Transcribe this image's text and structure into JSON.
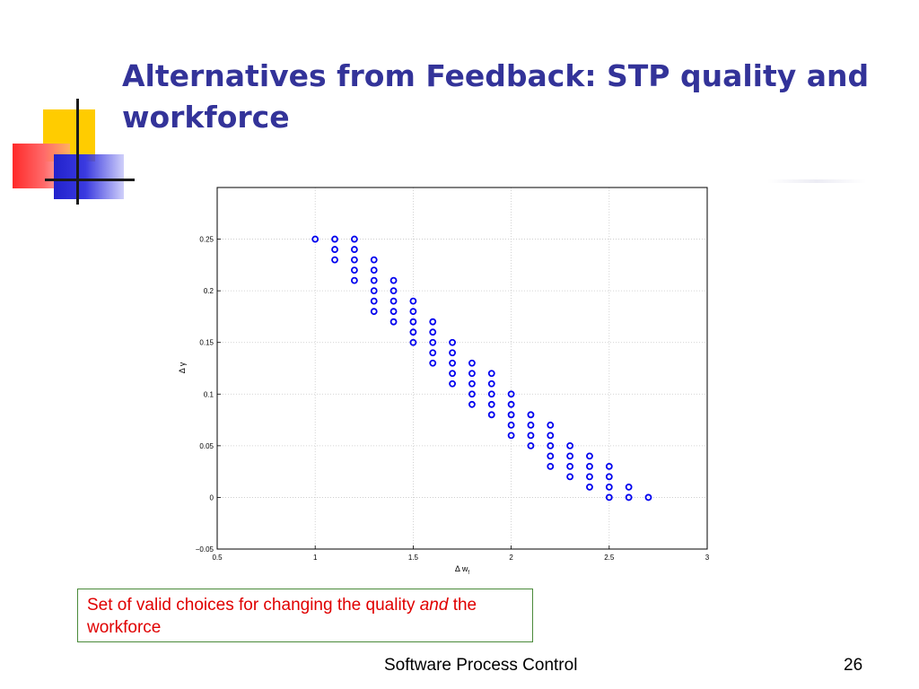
{
  "slide": {
    "title": "Alternatives from Feedback: STP quality and workforce",
    "caption_part1": "Set of valid choices for changing the quality ",
    "caption_emphasis": "and",
    "caption_part2": " the workforce",
    "footer": "Software Process Control",
    "page_number": "26"
  },
  "colors": {
    "title": "#333399",
    "caption_text": "#e00000",
    "marker": "#0000ee",
    "deco_yellow": "#ffcc00",
    "deco_red": "#ff2a2a",
    "deco_blue": "#2222cc"
  },
  "chart_data": {
    "type": "scatter",
    "xlabel": "Δ w_f",
    "ylabel": "Δ γ",
    "xlim": [
      0.5,
      3
    ],
    "ylim": [
      -0.05,
      0.3
    ],
    "xticks": [
      "0.5",
      "1",
      "1.5",
      "2",
      "2.5",
      "3"
    ],
    "yticks": [
      "−0.05",
      "0",
      "0.05",
      "0.1",
      "0.15",
      "0.2",
      "0.25"
    ],
    "grid": true,
    "marker": "circle-open",
    "points": [
      [
        1.0,
        0.25
      ],
      [
        1.1,
        0.25
      ],
      [
        1.1,
        0.24
      ],
      [
        1.1,
        0.23
      ],
      [
        1.2,
        0.25
      ],
      [
        1.2,
        0.24
      ],
      [
        1.2,
        0.23
      ],
      [
        1.2,
        0.22
      ],
      [
        1.2,
        0.21
      ],
      [
        1.3,
        0.23
      ],
      [
        1.3,
        0.22
      ],
      [
        1.3,
        0.21
      ],
      [
        1.3,
        0.2
      ],
      [
        1.3,
        0.19
      ],
      [
        1.3,
        0.18
      ],
      [
        1.4,
        0.21
      ],
      [
        1.4,
        0.2
      ],
      [
        1.4,
        0.19
      ],
      [
        1.4,
        0.18
      ],
      [
        1.4,
        0.17
      ],
      [
        1.5,
        0.19
      ],
      [
        1.5,
        0.18
      ],
      [
        1.5,
        0.17
      ],
      [
        1.5,
        0.16
      ],
      [
        1.5,
        0.15
      ],
      [
        1.6,
        0.17
      ],
      [
        1.6,
        0.16
      ],
      [
        1.6,
        0.15
      ],
      [
        1.6,
        0.14
      ],
      [
        1.6,
        0.13
      ],
      [
        1.7,
        0.15
      ],
      [
        1.7,
        0.14
      ],
      [
        1.7,
        0.13
      ],
      [
        1.7,
        0.12
      ],
      [
        1.7,
        0.11
      ],
      [
        1.8,
        0.13
      ],
      [
        1.8,
        0.12
      ],
      [
        1.8,
        0.11
      ],
      [
        1.8,
        0.1
      ],
      [
        1.8,
        0.09
      ],
      [
        1.9,
        0.12
      ],
      [
        1.9,
        0.11
      ],
      [
        1.9,
        0.1
      ],
      [
        1.9,
        0.09
      ],
      [
        1.9,
        0.08
      ],
      [
        2.0,
        0.1
      ],
      [
        2.0,
        0.09
      ],
      [
        2.0,
        0.08
      ],
      [
        2.0,
        0.07
      ],
      [
        2.0,
        0.06
      ],
      [
        2.1,
        0.08
      ],
      [
        2.1,
        0.07
      ],
      [
        2.1,
        0.06
      ],
      [
        2.1,
        0.05
      ],
      [
        2.2,
        0.07
      ],
      [
        2.2,
        0.06
      ],
      [
        2.2,
        0.05
      ],
      [
        2.2,
        0.04
      ],
      [
        2.2,
        0.03
      ],
      [
        2.3,
        0.05
      ],
      [
        2.3,
        0.04
      ],
      [
        2.3,
        0.03
      ],
      [
        2.3,
        0.02
      ],
      [
        2.4,
        0.04
      ],
      [
        2.4,
        0.03
      ],
      [
        2.4,
        0.02
      ],
      [
        2.4,
        0.01
      ],
      [
        2.5,
        0.03
      ],
      [
        2.5,
        0.02
      ],
      [
        2.5,
        0.01
      ],
      [
        2.5,
        0.0
      ],
      [
        2.6,
        0.01
      ],
      [
        2.6,
        0.0
      ],
      [
        2.7,
        0.0
      ]
    ]
  }
}
